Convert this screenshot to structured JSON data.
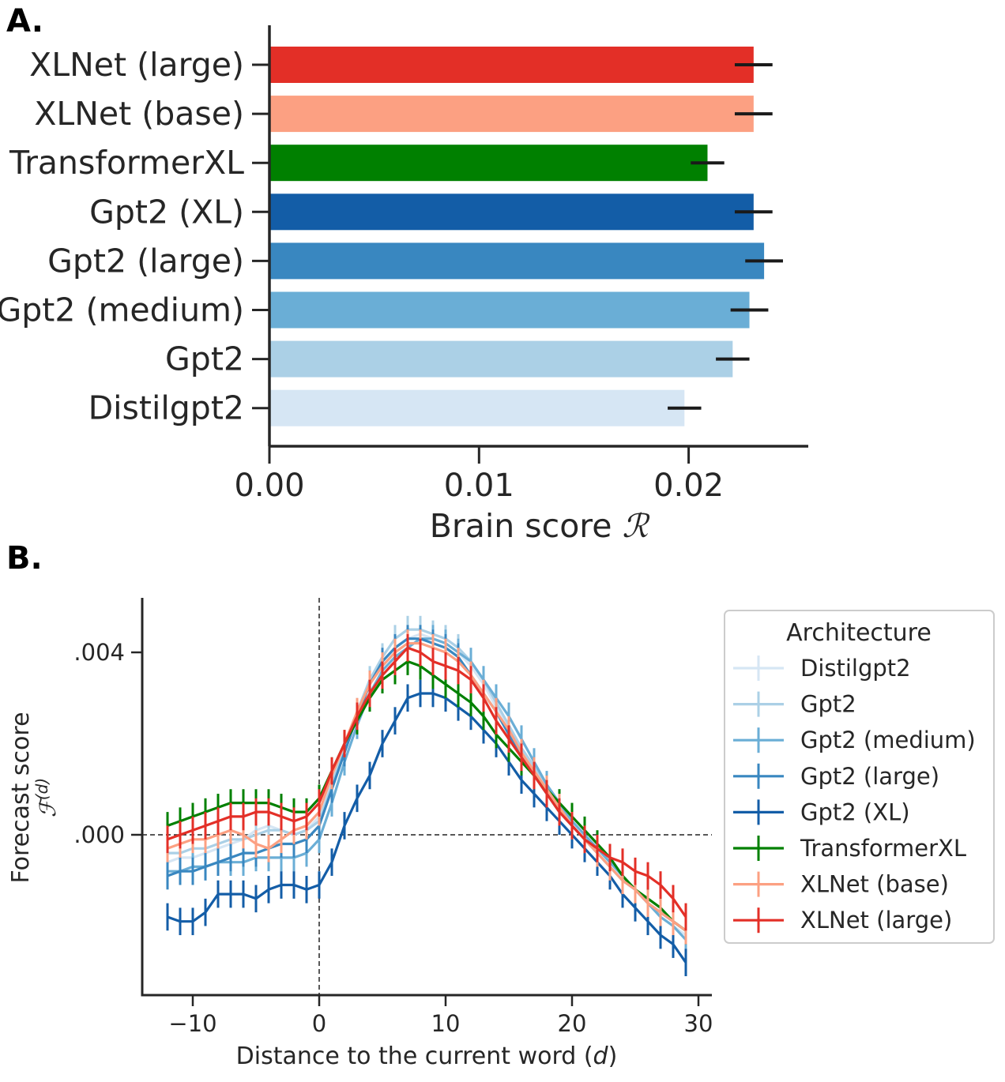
{
  "panels": {
    "a_label": "A.",
    "b_label": "B."
  },
  "chart_data": [
    {
      "type": "bar",
      "orientation": "horizontal",
      "categories": [
        "XLNet (large)",
        "XLNet (base)",
        "TransformerXL",
        "Gpt2 (XL)",
        "Gpt2 (large)",
        "Gpt2 (medium)",
        "Gpt2",
        "Distilgpt2"
      ],
      "values": [
        0.0231,
        0.0231,
        0.0209,
        0.0231,
        0.0236,
        0.0229,
        0.0221,
        0.0198
      ],
      "errors": [
        0.0009,
        0.0009,
        0.0008,
        0.0009,
        0.0009,
        0.0009,
        0.0008,
        0.0008
      ],
      "colors": [
        "#e32f27",
        "#fca082",
        "#008000",
        "#135da7",
        "#3987c0",
        "#6aaed6",
        "#abd0e6",
        "#d6e6f4"
      ],
      "xlabel": "Brain score",
      "xlabel_symbol": "ℛ",
      "xticks": [
        "0.00",
        "0.01",
        "0.02"
      ],
      "xtick_values": [
        0,
        0.01,
        0.02
      ],
      "xlim": [
        0,
        0.026
      ]
    },
    {
      "type": "line",
      "xlabel_prefix": "Distance to the current word (",
      "xlabel_var": "d",
      "xlabel_suffix": ")",
      "ylabel": "Forecast score",
      "ylabel_symbol": "ℱ",
      "ylabel_sup": "(d)",
      "xlim": [
        -14,
        31
      ],
      "ylim": [
        -0.0035,
        0.0052
      ],
      "xticks": [
        "−10",
        "0",
        "10",
        "20",
        "30"
      ],
      "xtick_values": [
        -10,
        0,
        10,
        20,
        30
      ],
      "yticks": [
        ".000",
        ".004"
      ],
      "ytick_values": [
        0,
        0.004
      ],
      "reference_lines": {
        "x": 0,
        "y": 0
      },
      "legend": {
        "title": "Architecture",
        "placement": "right"
      },
      "x": [
        -12,
        -11,
        -10,
        -9,
        -8,
        -7,
        -6,
        -5,
        -4,
        -3,
        -2,
        -1,
        0,
        1,
        2,
        3,
        4,
        5,
        6,
        7,
        8,
        9,
        10,
        11,
        12,
        13,
        14,
        15,
        16,
        17,
        18,
        19,
        20,
        21,
        22,
        23,
        24,
        25,
        26,
        27,
        28,
        29
      ],
      "series": [
        {
          "name": "Distilgpt2",
          "color": "#d6e6f4",
          "err": 0.0003,
          "values": [
            -0.0006,
            -0.0005,
            -0.0005,
            -0.0004,
            -0.0003,
            -0.0002,
            -0.0001,
            0.0001,
            0.0002,
            0.0001,
            0.0,
            0.0001,
            0.0004,
            0.0012,
            0.0019,
            0.0026,
            0.0033,
            0.0038,
            0.0041,
            0.0043,
            0.0044,
            0.0043,
            0.0042,
            0.004,
            0.0037,
            0.0033,
            0.0028,
            0.0024,
            0.0019,
            0.0015,
            0.0011,
            0.0007,
            0.0003,
            0.0,
            -0.0003,
            -0.0006,
            -0.0009,
            -0.0012,
            -0.0015,
            -0.0018,
            -0.002,
            -0.0022
          ]
        },
        {
          "name": "Gpt2",
          "color": "#abd0e6",
          "err": 0.0003,
          "values": [
            -0.0004,
            -0.0004,
            -0.0003,
            -0.0003,
            -0.0002,
            -0.0001,
            -0.0001,
            0.0,
            0.0001,
            0.0001,
            0.0,
            0.0001,
            0.0003,
            0.0011,
            0.0019,
            0.0027,
            0.0034,
            0.0039,
            0.0043,
            0.0045,
            0.0045,
            0.0044,
            0.0043,
            0.0041,
            0.0038,
            0.0034,
            0.0029,
            0.0024,
            0.0019,
            0.0015,
            0.0011,
            0.0007,
            0.0003,
            0.0,
            -0.0003,
            -0.0006,
            -0.0009,
            -0.0012,
            -0.0015,
            -0.0017,
            -0.0019,
            -0.0021
          ]
        },
        {
          "name": "Gpt2 (medium)",
          "color": "#6aaed6",
          "err": 0.0003,
          "values": [
            -0.0008,
            -0.0008,
            -0.0007,
            -0.0007,
            -0.0006,
            -0.0006,
            -0.0006,
            -0.0005,
            -0.0005,
            -0.0005,
            -0.0005,
            -0.0004,
            -0.0001,
            0.0007,
            0.0016,
            0.0024,
            0.0031,
            0.0036,
            0.0039,
            0.0041,
            0.0043,
            0.0043,
            0.0042,
            0.004,
            0.0038,
            0.0034,
            0.003,
            0.0026,
            0.0021,
            0.0016,
            0.0011,
            0.0007,
            0.0003,
            0.0,
            -0.0003,
            -0.0006,
            -0.0009,
            -0.0012,
            -0.0015,
            -0.0018,
            -0.002,
            -0.0023
          ]
        },
        {
          "name": "Gpt2 (large)",
          "color": "#3987c0",
          "err": 0.0003,
          "values": [
            -0.0009,
            -0.0008,
            -0.0008,
            -0.0007,
            -0.0006,
            -0.0005,
            -0.0004,
            -0.0004,
            -0.0003,
            -0.0002,
            -0.0002,
            -0.0001,
            0.0002,
            0.001,
            0.0018,
            0.0026,
            0.0033,
            0.0038,
            0.0041,
            0.0043,
            0.0043,
            0.0042,
            0.0041,
            0.0039,
            0.0035,
            0.0031,
            0.0027,
            0.0022,
            0.0017,
            0.0013,
            0.0009,
            0.0005,
            0.0002,
            -0.0001,
            -0.0004,
            -0.0007,
            -0.001,
            -0.0012,
            -0.0015,
            -0.0017,
            -0.0019,
            -0.0021
          ]
        },
        {
          "name": "Gpt2 (XL)",
          "color": "#135da7",
          "err": 0.0003,
          "values": [
            -0.0018,
            -0.0019,
            -0.0019,
            -0.0017,
            -0.0013,
            -0.0013,
            -0.0013,
            -0.0014,
            -0.0012,
            -0.0011,
            -0.0011,
            -0.0012,
            -0.0011,
            -0.0006,
            0.0002,
            0.0008,
            0.0013,
            0.002,
            0.0025,
            0.003,
            0.0031,
            0.0031,
            0.003,
            0.0028,
            0.0026,
            0.0023,
            0.002,
            0.0016,
            0.0012,
            0.0009,
            0.0006,
            0.0003,
            0.0,
            -0.0003,
            -0.0006,
            -0.0009,
            -0.0013,
            -0.0016,
            -0.0019,
            -0.0022,
            -0.0024,
            -0.0028
          ]
        },
        {
          "name": "TransformerXL",
          "color": "#008000",
          "err": 0.0003,
          "values": [
            0.0002,
            0.0003,
            0.0004,
            0.0005,
            0.0006,
            0.0007,
            0.0007,
            0.0007,
            0.0007,
            0.0006,
            0.0005,
            0.0005,
            0.0008,
            0.0014,
            0.002,
            0.0025,
            0.003,
            0.0034,
            0.0036,
            0.0038,
            0.0037,
            0.0035,
            0.0033,
            0.0031,
            0.0029,
            0.0026,
            0.0022,
            0.0019,
            0.0016,
            0.0013,
            0.001,
            0.0007,
            0.0004,
            0.0001,
            -0.0002,
            -0.0005,
            -0.0009,
            -0.0012,
            -0.0014,
            -0.0016,
            -0.0019,
            -0.0021
          ]
        },
        {
          "name": "XLNet (base)",
          "color": "#fca082",
          "err": 0.0003,
          "values": [
            -0.0003,
            -0.0002,
            -0.0001,
            -0.0001,
            0.0,
            0.0001,
            0.0,
            -0.0002,
            -0.0003,
            -0.0001,
            0.0001,
            0.0002,
            0.0005,
            0.0013,
            0.002,
            0.0027,
            0.0033,
            0.0037,
            0.004,
            0.0042,
            0.0042,
            0.0041,
            0.004,
            0.0038,
            0.0035,
            0.0031,
            0.0027,
            0.0023,
            0.0018,
            0.0014,
            0.001,
            0.0006,
            0.0002,
            -0.0001,
            -0.0004,
            -0.0007,
            -0.001,
            -0.0012,
            -0.0015,
            -0.0017,
            -0.0019,
            -0.0021
          ]
        },
        {
          "name": "XLNet (large)",
          "color": "#e32f27",
          "err": 0.0003,
          "values": [
            -0.0001,
            0.0,
            0.0001,
            0.0002,
            0.0003,
            0.0004,
            0.0004,
            0.0005,
            0.0005,
            0.0004,
            0.0003,
            0.0004,
            0.0007,
            0.0014,
            0.002,
            0.0026,
            0.0031,
            0.0035,
            0.0038,
            0.0041,
            0.004,
            0.0038,
            0.0037,
            0.0036,
            0.0034,
            0.003,
            0.0025,
            0.0021,
            0.0017,
            0.0013,
            0.0009,
            0.0005,
            0.0002,
            -0.0001,
            -0.0003,
            -0.0005,
            -0.0006,
            -0.0008,
            -0.0009,
            -0.0011,
            -0.0014,
            -0.0018
          ]
        }
      ]
    }
  ]
}
